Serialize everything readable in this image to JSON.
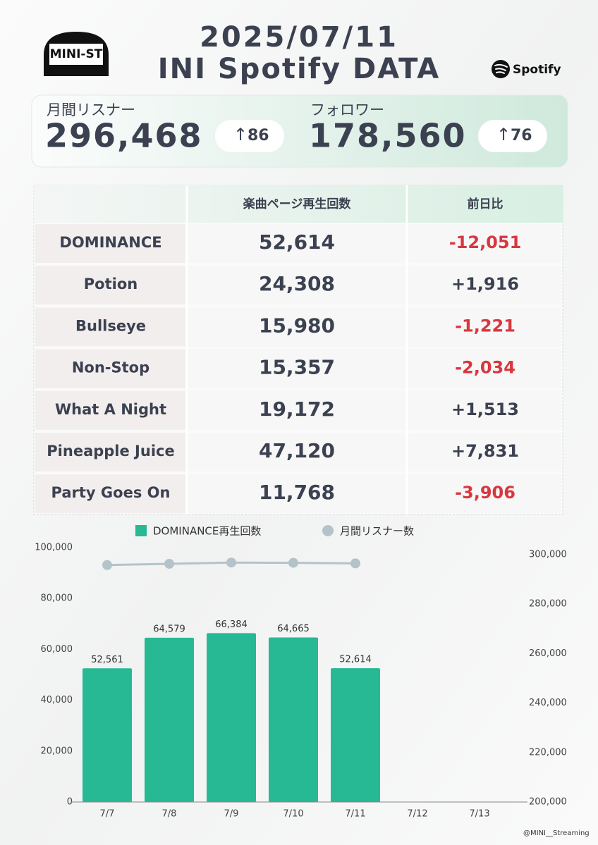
{
  "header": {
    "logo": "MINI-ST",
    "date": "2025/07/11",
    "title": "INI Spotify DATA",
    "brand": "Spotify"
  },
  "stats": [
    {
      "label": "月間リスナー",
      "value": "296,468",
      "change": "86"
    },
    {
      "label": "フォロワー",
      "value": "178,560",
      "change": "76"
    }
  ],
  "table": {
    "columns": [
      "楽曲ページ再生回数",
      "前日比"
    ],
    "rows": [
      [
        "DOMINANCE",
        "52,614",
        "-12,051"
      ],
      [
        "Potion",
        "24,308",
        "+1,916"
      ],
      [
        "Bullseye",
        "15,980",
        "-1,221"
      ],
      [
        "Non-Stop",
        "15,357",
        "-2,034"
      ],
      [
        "What A Night",
        "19,172",
        "+1,513"
      ],
      [
        "Pineapple Juice",
        "47,120",
        "+7,831"
      ],
      [
        "Party Goes On",
        "11,768",
        "-3,906"
      ]
    ]
  },
  "chart_data": {
    "type": "bar",
    "categories": [
      "7/7",
      "7/8",
      "7/9",
      "7/10",
      "7/11",
      "7/12",
      "7/13"
    ],
    "series": [
      {
        "name": "DOMINANCE再生回数",
        "color": "#26b994",
        "values": [
          52561,
          64579,
          66384,
          64665,
          52614,
          null,
          null
        ],
        "value_labels": [
          "52,561",
          "64,579",
          "66,384",
          "64,665",
          "52,614",
          null,
          null
        ]
      },
      {
        "name": "月間リスナー数",
        "color": "#b4c3ca",
        "axis": "y2",
        "type": "line",
        "values": [
          295800,
          296300,
          296800,
          296700,
          296468,
          null,
          null
        ]
      }
    ],
    "ylim": [
      0,
      100000
    ],
    "yticks": [
      0,
      {
        "value": 20000,
        "label": "20,000"
      },
      {
        "value": 40000,
        "label": "40,000"
      },
      {
        "value": 60000,
        "label": "60,000"
      },
      {
        "value": 80000,
        "label": "80,000"
      },
      {
        "value": 100000,
        "label": "100,000"
      }
    ],
    "y2lim": [
      200000,
      300000
    ],
    "y2ticks": [
      {
        "value": 200000,
        "label": "200,000"
      },
      {
        "value": 220000,
        "label": "220,000"
      },
      {
        "value": 240000,
        "label": "240,000"
      },
      {
        "value": 260000,
        "label": "260,000"
      },
      {
        "value": 280000,
        "label": "280,000"
      },
      {
        "value": 300000,
        "label": "300,000"
      }
    ]
  },
  "footer": "@MINI__Streaming"
}
